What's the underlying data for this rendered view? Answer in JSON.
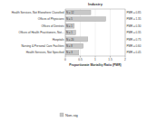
{
  "chart_data": {
    "type": "bar",
    "orientation": "horizontal",
    "title": "Industry",
    "x_label": "Proportionate Mortality Ratio (PMR)",
    "categories": [
      "Health Services, Not Elsewhere Classified",
      "Offices of Physicians",
      "Offices of Dentists",
      "Offices of Health Practitioners, Not...",
      "Hospitals",
      "Nursing & Personal Care Facilities",
      "Health Services, Not Specified"
    ],
    "series": [
      {
        "name": "Non-sig",
        "color": "#c8c8c8",
        "values": [
          0.85,
          1.35,
          0.3,
          0.35,
          0.75,
          0.6,
          0.45
        ],
        "value_labels": [
          "PMR = 0.85",
          "PMR = 1.35",
          "PMR = 0.30",
          "PMR = 0.35",
          "PMR = 0.75",
          "PMR = 0.60",
          "PMR = 0.45"
        ],
        "n_labels": [
          "N = 12",
          "N = 5",
          "N = 1",
          "N = 1",
          "N = 20",
          "N = 8",
          "N = 3"
        ]
      }
    ],
    "xlim": [
      0,
      2
    ],
    "xticks": [
      0,
      0.5,
      1,
      1.5,
      2
    ],
    "legend": "bottom",
    "data_labels": true
  }
}
